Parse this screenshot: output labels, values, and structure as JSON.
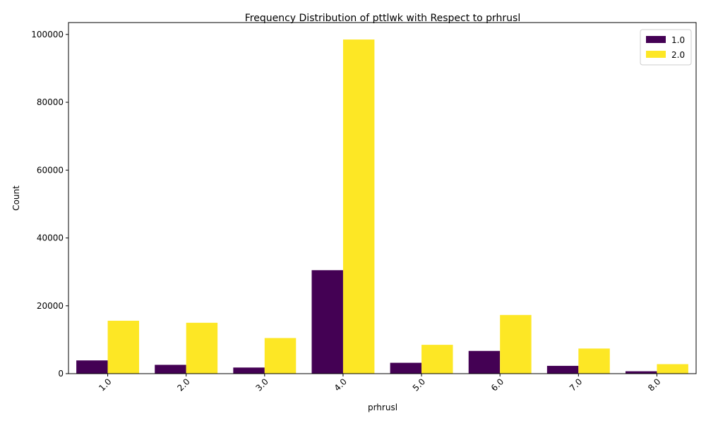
{
  "chart_data": {
    "type": "bar",
    "title": "Frequency Distribution of pttlwk with Respect to prhrusl",
    "xlabel": "prhrusl",
    "ylabel": "Count",
    "categories": [
      "1.0",
      "2.0",
      "3.0",
      "4.0",
      "5.0",
      "6.0",
      "7.0",
      "8.0"
    ],
    "series": [
      {
        "name": "1.0",
        "color": "#440154",
        "values": [
          3900,
          2600,
          1800,
          30500,
          3200,
          6700,
          2300,
          700
        ]
      },
      {
        "name": "2.0",
        "color": "#fde725",
        "values": [
          15600,
          15000,
          10500,
          98500,
          8500,
          17300,
          7400,
          2800
        ]
      }
    ],
    "ylim": [
      0,
      103500
    ],
    "yticks": [
      0,
      20000,
      40000,
      60000,
      80000,
      100000
    ],
    "grid": false,
    "legend_position": "top-right",
    "x_tick_rotation": -45
  }
}
